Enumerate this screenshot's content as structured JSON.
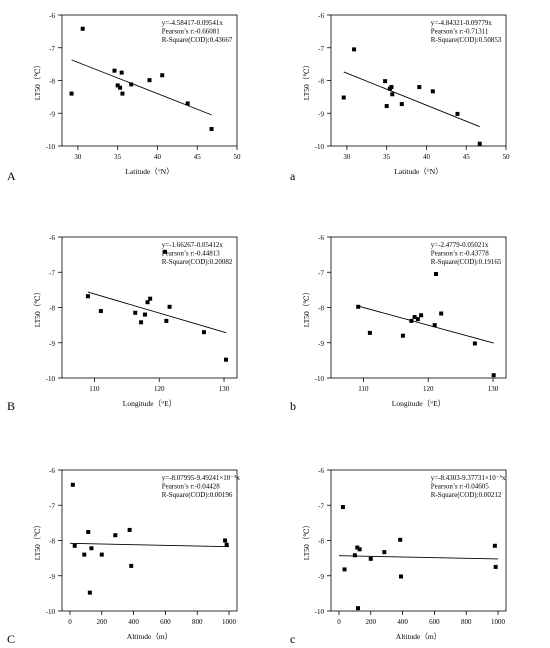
{
  "chart_data": [
    {
      "panel": "A",
      "type": "scatter",
      "xlabel": "Latitude（°N）",
      "ylabel": "LT50（℃）",
      "xlim": [
        28,
        50
      ],
      "ylim": [
        -10,
        -6
      ],
      "xticks": [
        30,
        35,
        40,
        45,
        50
      ],
      "yticks": [
        -6,
        -7,
        -8,
        -9,
        -10
      ],
      "annotation": [
        "y=-4.58417-0.09541x",
        "Pearson’s r:-0.66081",
        "R-Square(COD):0.43667"
      ],
      "points": [
        [
          29.2,
          -8.4
        ],
        [
          30.6,
          -6.42
        ],
        [
          34.6,
          -7.7
        ],
        [
          35.0,
          -8.15
        ],
        [
          35.3,
          -8.22
        ],
        [
          35.5,
          -7.76
        ],
        [
          35.6,
          -8.4
        ],
        [
          36.7,
          -8.12
        ],
        [
          39.0,
          -7.99
        ],
        [
          40.6,
          -7.84
        ],
        [
          43.8,
          -8.7
        ],
        [
          46.8,
          -9.48
        ]
      ],
      "fit": {
        "intercept": -4.58417,
        "slope": -0.09541,
        "x_range": [
          29.2,
          46.8
        ]
      }
    },
    {
      "panel": "a",
      "type": "scatter",
      "xlabel": "Latitude（°N）",
      "ylabel": "LT50（℃）",
      "xlim": [
        28,
        50
      ],
      "ylim": [
        -10,
        -6
      ],
      "xticks": [
        30,
        35,
        40,
        45,
        50
      ],
      "yticks": [
        -6,
        -7,
        -8,
        -9,
        -10
      ],
      "annotation": [
        "y=-4.84321-0.09779x",
        "Pearson’s r:-0.71311",
        "R-Square(COD):0.50853"
      ],
      "points": [
        [
          29.6,
          -8.52
        ],
        [
          30.9,
          -7.05
        ],
        [
          34.8,
          -8.02
        ],
        [
          35.0,
          -8.78
        ],
        [
          35.4,
          -8.25
        ],
        [
          35.6,
          -8.2
        ],
        [
          35.7,
          -8.42
        ],
        [
          36.9,
          -8.72
        ],
        [
          39.1,
          -8.2
        ],
        [
          40.8,
          -8.33
        ],
        [
          43.9,
          -9.02
        ],
        [
          46.7,
          -9.93
        ]
      ],
      "fit": {
        "intercept": -4.84321,
        "slope": -0.09779,
        "x_range": [
          29.6,
          46.7
        ]
      }
    },
    {
      "panel": "B",
      "type": "scatter",
      "xlabel": "Longitude（°E）",
      "ylabel": "LT50（℃）",
      "xlim": [
        105,
        132
      ],
      "ylim": [
        -10,
        -6
      ],
      "xticks": [
        110,
        120,
        130
      ],
      "yticks": [
        -6,
        -7,
        -8,
        -9,
        -10
      ],
      "annotation": [
        "y=-1.66267-0.05412x",
        "Pearson’s r:-0.44813",
        "R-Square(COD):0.20082"
      ],
      "points": [
        [
          109.0,
          -7.68
        ],
        [
          111.0,
          -8.1
        ],
        [
          116.3,
          -8.15
        ],
        [
          117.2,
          -8.42
        ],
        [
          117.8,
          -8.2
        ],
        [
          118.2,
          -7.85
        ],
        [
          118.6,
          -7.75
        ],
        [
          120.9,
          -6.42
        ],
        [
          121.1,
          -8.38
        ],
        [
          121.6,
          -7.98
        ],
        [
          126.9,
          -8.7
        ],
        [
          130.3,
          -9.48
        ]
      ],
      "fit": {
        "intercept": -1.66267,
        "slope": -0.05412,
        "x_range": [
          109.0,
          130.3
        ]
      }
    },
    {
      "panel": "b",
      "type": "scatter",
      "xlabel": "Longitude（°E）",
      "ylabel": "LT50（℃）",
      "xlim": [
        105,
        132
      ],
      "ylim": [
        -10,
        -6
      ],
      "xticks": [
        110,
        120,
        130
      ],
      "yticks": [
        -6,
        -7,
        -8,
        -9,
        -10
      ],
      "annotation": [
        "y=-2.4779-0.05021x",
        "Pearson’s r:-0.43778",
        "R-Square(COD):0.19165"
      ],
      "points": [
        [
          109.2,
          -7.98
        ],
        [
          111.0,
          -8.72
        ],
        [
          116.1,
          -8.8
        ],
        [
          117.4,
          -8.38
        ],
        [
          117.9,
          -8.27
        ],
        [
          118.4,
          -8.33
        ],
        [
          118.9,
          -8.22
        ],
        [
          121.0,
          -8.5
        ],
        [
          121.2,
          -7.05
        ],
        [
          122.0,
          -8.17
        ],
        [
          127.2,
          -9.02
        ],
        [
          130.1,
          -9.92
        ]
      ],
      "fit": {
        "intercept": -2.4779,
        "slope": -0.05021,
        "x_range": [
          109.2,
          130.1
        ]
      }
    },
    {
      "panel": "C",
      "type": "scatter",
      "xlabel": "Altitude（m）",
      "ylabel": "LT50（℃）",
      "xlim": [
        -50,
        1050
      ],
      "ylim": [
        -10,
        -6
      ],
      "xticks": [
        0,
        200,
        400,
        600,
        800,
        1000
      ],
      "yticks": [
        -6,
        -7,
        -8,
        -9,
        -10
      ],
      "annotation": [
        "y=-8.07995-9.49241×10⁻⁵x",
        "Pearson’s r:-0.04428",
        "R-Square(COD):0.00196"
      ],
      "points": [
        [
          18,
          -6.42
        ],
        [
          30,
          -8.15
        ],
        [
          90,
          -8.4
        ],
        [
          115,
          -7.76
        ],
        [
          125,
          -9.48
        ],
        [
          135,
          -8.22
        ],
        [
          200,
          -8.4
        ],
        [
          285,
          -7.85
        ],
        [
          375,
          -7.7
        ],
        [
          385,
          -8.72
        ],
        [
          975,
          -8.0
        ],
        [
          985,
          -8.12
        ]
      ],
      "fit": {
        "intercept": -8.07995,
        "slope": -9.49241e-05,
        "x_range": [
          0,
          1000
        ]
      }
    },
    {
      "panel": "c",
      "type": "scatter",
      "xlabel": "Altitude（m）",
      "ylabel": "LT50（℃）",
      "xlim": [
        -50,
        1050
      ],
      "ylim": [
        -10,
        -6
      ],
      "xticks": [
        0,
        200,
        400,
        600,
        800,
        1000
      ],
      "yticks": [
        -6,
        -7,
        -8,
        -9,
        -10
      ],
      "annotation": [
        "y=-8.4303-9.37731×10⁻⁵x",
        "Pearson’s r:-0.04605",
        "R-Square(COD):0.00212"
      ],
      "points": [
        [
          25,
          -7.05
        ],
        [
          35,
          -8.82
        ],
        [
          100,
          -8.42
        ],
        [
          115,
          -8.2
        ],
        [
          130,
          -8.25
        ],
        [
          120,
          -9.92
        ],
        [
          200,
          -8.52
        ],
        [
          285,
          -8.33
        ],
        [
          385,
          -7.98
        ],
        [
          390,
          -9.02
        ],
        [
          980,
          -8.15
        ],
        [
          985,
          -8.75
        ]
      ],
      "fit": {
        "intercept": -8.4303,
        "slope": -9.37731e-05,
        "x_range": [
          0,
          1000
        ]
      }
    }
  ]
}
